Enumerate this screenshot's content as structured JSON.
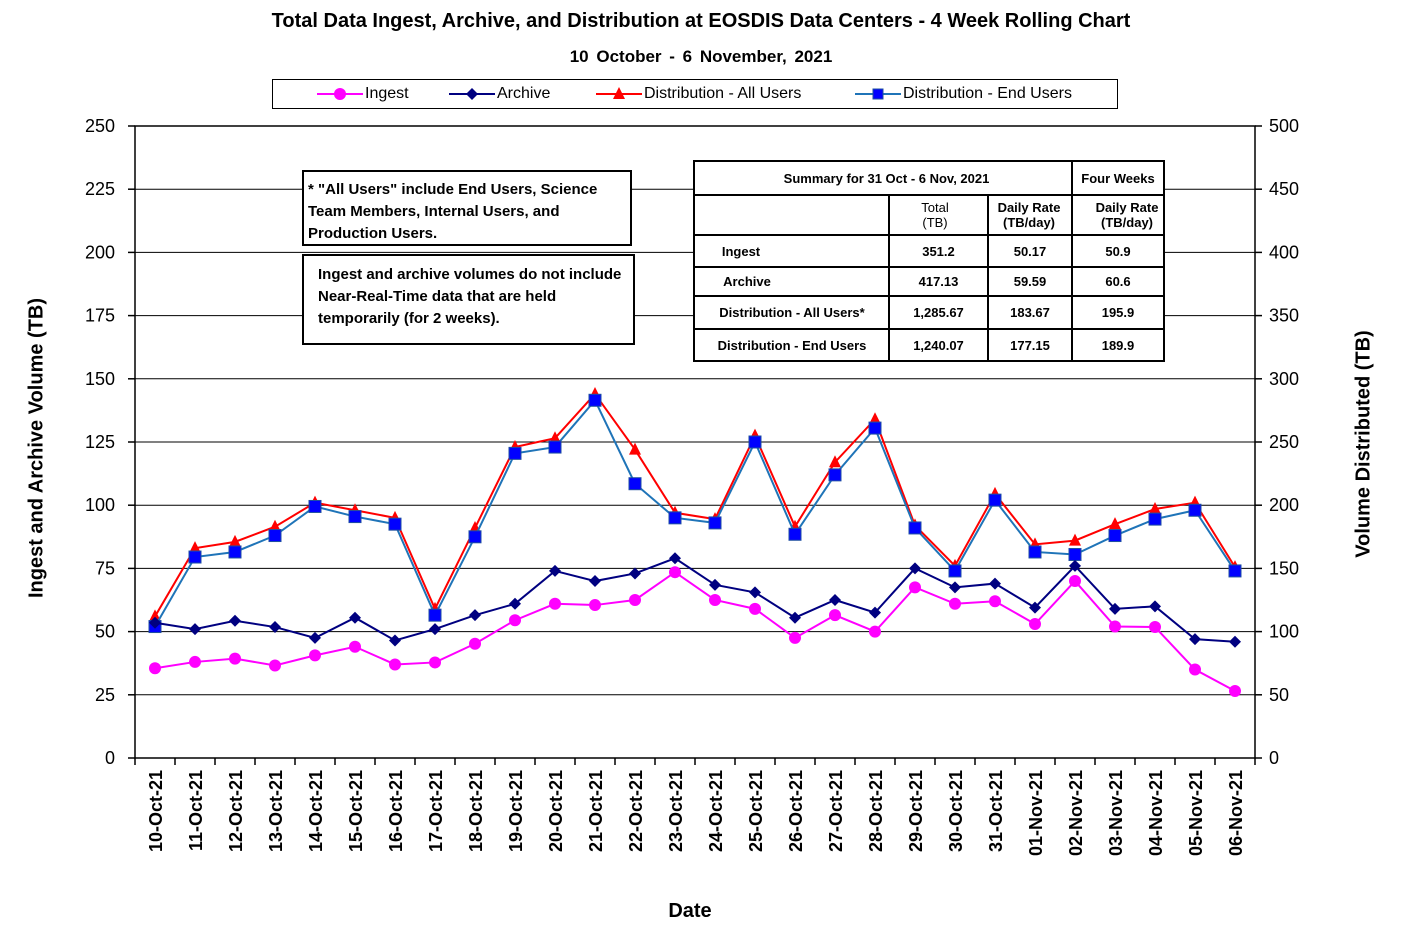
{
  "chart_data": {
    "type": "line",
    "title": "Total Data Ingest, Archive, and  Distribution at EOSDIS Data Centers - 4 Week Rolling Chart",
    "subtitle": "10 October  - 6 November, 2021",
    "xlabel": "Date",
    "ylabel_left": "Ingest and Archive Volume (TB)",
    "ylabel_right": "Volume Distributed (TB)",
    "ylim_left": [
      0,
      250
    ],
    "ylim_right": [
      0,
      500
    ],
    "yticks_left": [
      "0",
      "25",
      "50",
      "75",
      "100",
      "125",
      "150",
      "175",
      "200",
      "225",
      "250"
    ],
    "yticks_right": [
      "0",
      "50",
      "100",
      "150",
      "200",
      "250",
      "300",
      "350",
      "400",
      "450",
      "500"
    ],
    "grid": "horizontal",
    "legend_position": "top",
    "categories": [
      "10-Oct-21",
      "11-Oct-21",
      "12-Oct-21",
      "13-Oct-21",
      "14-Oct-21",
      "15-Oct-21",
      "16-Oct-21",
      "17-Oct-21",
      "18-Oct-21",
      "19-Oct-21",
      "20-Oct-21",
      "21-Oct-21",
      "22-Oct-21",
      "23-Oct-21",
      "24-Oct-21",
      "25-Oct-21",
      "26-Oct-21",
      "27-Oct-21",
      "28-Oct-21",
      "29-Oct-21",
      "30-Oct-21",
      "31-Oct-21",
      "01-Nov-21",
      "02-Nov-21",
      "03-Nov-21",
      "04-Nov-21",
      "05-Nov-21",
      "06-Nov-21"
    ],
    "series": [
      {
        "name": "Ingest",
        "axis": "left",
        "color": "#ff00ff",
        "marker": "circle",
        "values": [
          35.5,
          38,
          39.3,
          36.6,
          40.6,
          44,
          37,
          37.8,
          45.2,
          54.5,
          61,
          60.5,
          62.5,
          73.5,
          62.5,
          59,
          47.5,
          56.5,
          50,
          67.5,
          61,
          62,
          53,
          70,
          52,
          51.8,
          35,
          26.5
        ]
      },
      {
        "name": "Archive",
        "axis": "left",
        "color": "#000080",
        "marker": "diamond",
        "values": [
          53.5,
          51,
          54.3,
          51.8,
          47.5,
          55.5,
          46.5,
          51,
          56.5,
          61,
          74,
          70,
          73,
          79,
          68.5,
          65.5,
          55.5,
          62.5,
          57.5,
          75,
          67.5,
          69,
          59.5,
          76,
          59,
          60,
          47,
          46
        ]
      },
      {
        "name": "Distribution - All Users",
        "axis": "right",
        "color": "#ff0000",
        "marker": "triangle",
        "values": [
          112,
          166,
          171,
          183,
          202,
          196,
          190,
          118,
          182,
          246,
          253,
          288,
          244,
          194,
          189,
          255,
          183,
          234,
          268,
          184,
          152,
          209,
          169,
          172,
          185,
          197,
          202,
          151
        ]
      },
      {
        "name": "Distribution - End Users",
        "axis": "right",
        "color": "#0000ff",
        "line_color": "#1f74b8",
        "marker": "square",
        "values": [
          104,
          159,
          163,
          176,
          199,
          191,
          185,
          113,
          175,
          241,
          246,
          283,
          217,
          190,
          186,
          250,
          177,
          224,
          261,
          182,
          148,
          204,
          163,
          161,
          176,
          189,
          196,
          148
        ]
      }
    ],
    "notes": {
      "all_users": "* \"All Users\" include End Users, Science Team Members,  Internal Users, and Production Users.",
      "nrt": "Ingest and archive volumes do not include Near-Real-Time data that are held temporarily (for 2 weeks)."
    },
    "summary_table": {
      "header": "Summary for 31 Oct  - 6 Nov, 2021",
      "header_right": "Four Weeks",
      "col_total": "Total (TB)",
      "col_daily": "Daily Rate (TB/day)",
      "col_four": "Daily Rate (TB/day)",
      "rows": [
        {
          "label": "Ingest",
          "total": "351.2",
          "daily": "50.17",
          "four_weeks": "50.9"
        },
        {
          "label": "Archive",
          "total": "417.13",
          "daily": "59.59",
          "four_weeks": "60.6"
        },
        {
          "label": "Distribution - All Users*",
          "total": "1,285.67",
          "daily": "183.67",
          "four_weeks": "195.9"
        },
        {
          "label": "Distribution - End Users",
          "total": "1,240.07",
          "daily": "177.15",
          "four_weeks": "189.9"
        }
      ]
    }
  }
}
